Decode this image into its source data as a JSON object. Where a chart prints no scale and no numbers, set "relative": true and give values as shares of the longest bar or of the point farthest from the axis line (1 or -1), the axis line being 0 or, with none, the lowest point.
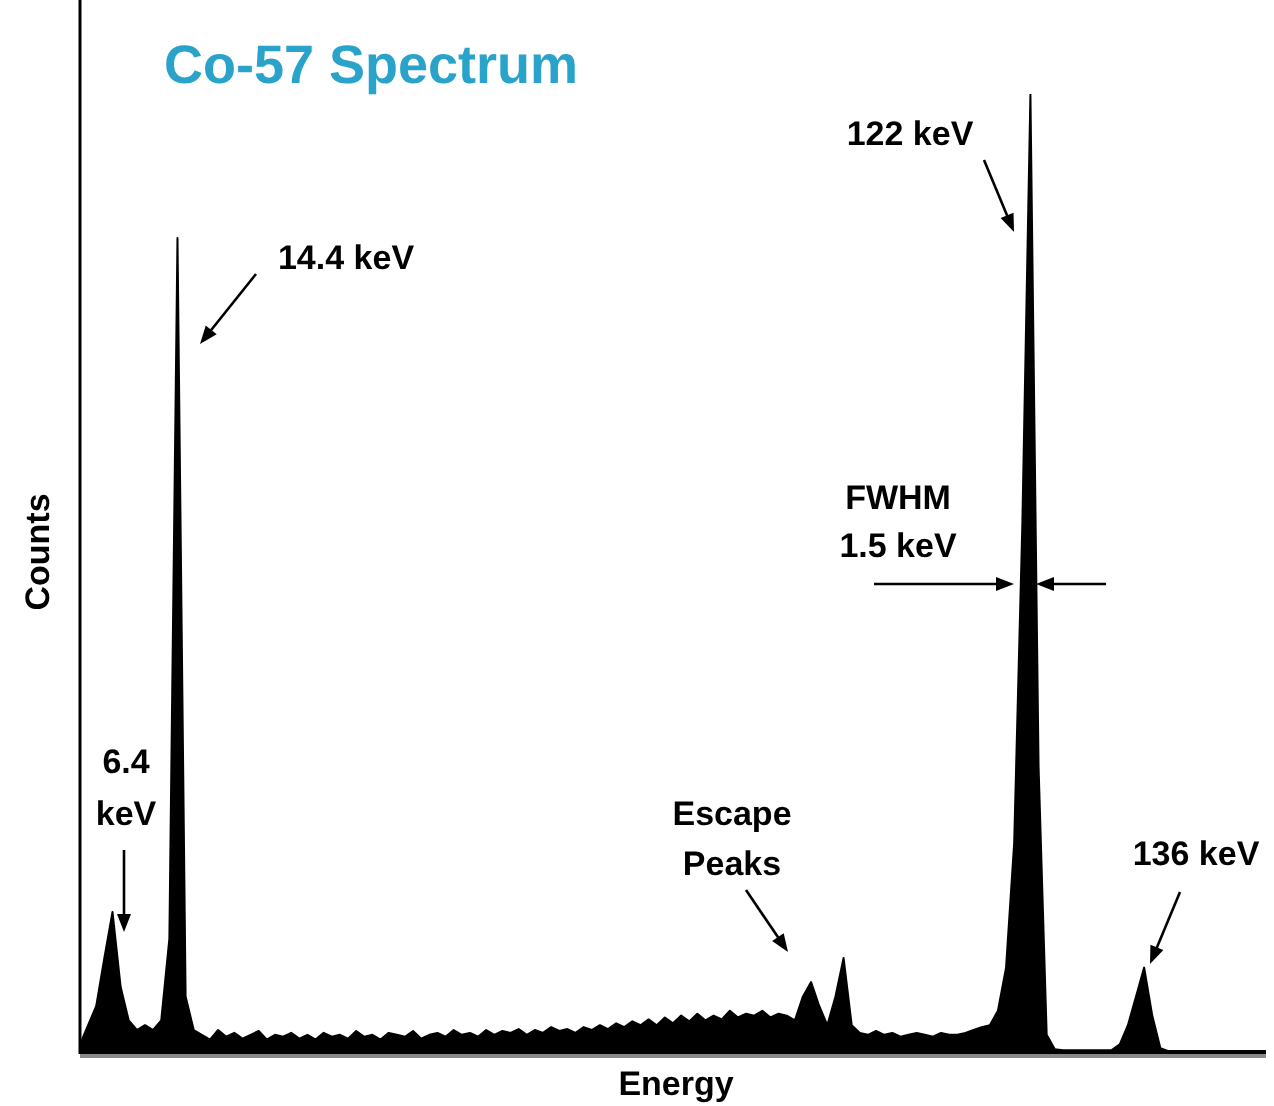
{
  "chart_data": {
    "type": "area",
    "title": "Co-57 Spectrum",
    "xlabel": "Energy",
    "ylabel": "Counts",
    "relative": true,
    "legend": false,
    "categories": [
      null,
      null,
      null,
      null,
      null,
      null,
      null,
      null,
      null,
      null,
      null,
      null,
      null,
      null,
      null,
      null,
      null,
      null,
      null,
      null,
      null,
      null,
      null,
      null,
      null,
      null,
      null,
      null,
      null,
      null,
      null,
      null,
      null,
      null,
      null,
      null,
      null,
      null,
      null,
      null,
      null,
      null,
      null,
      null,
      null,
      null,
      null,
      null,
      null,
      null,
      null,
      null,
      null,
      null,
      null,
      null,
      null,
      null,
      null,
      null,
      null,
      null,
      null,
      null,
      null,
      null,
      null,
      null,
      null,
      null,
      null,
      null,
      null,
      null,
      null,
      null,
      null,
      null,
      null,
      null,
      null,
      null,
      null,
      null,
      null,
      null,
      null,
      null,
      null,
      null,
      null,
      null,
      null,
      null,
      null,
      null,
      null,
      null,
      null,
      null,
      null,
      null,
      null,
      null,
      null,
      null,
      null,
      null,
      null,
      null,
      null,
      null,
      null,
      null,
      null,
      null,
      null,
      null,
      null,
      null,
      null,
      null,
      null,
      null,
      null,
      null,
      null,
      null,
      null,
      null,
      null,
      null,
      null,
      null,
      null,
      null,
      null,
      null,
      null,
      null,
      null,
      null,
      null,
      null,
      null,
      null,
      null
    ],
    "series": [
      {
        "color": "#000000",
        "values": [
          0.01,
          0.03,
          0.05,
          0.1,
          0.148,
          0.07,
          0.035,
          0.025,
          0.03,
          0.025,
          0.035,
          0.12,
          0.85,
          0.06,
          0.025,
          0.02,
          0.015,
          0.025,
          0.018,
          0.022,
          0.016,
          0.02,
          0.024,
          0.015,
          0.02,
          0.018,
          0.022,
          0.016,
          0.02,
          0.015,
          0.022,
          0.018,
          0.02,
          0.016,
          0.024,
          0.018,
          0.02,
          0.015,
          0.022,
          0.02,
          0.018,
          0.024,
          0.016,
          0.02,
          0.022,
          0.018,
          0.025,
          0.02,
          0.022,
          0.018,
          0.025,
          0.02,
          0.024,
          0.022,
          0.026,
          0.02,
          0.025,
          0.022,
          0.028,
          0.024,
          0.026,
          0.022,
          0.028,
          0.025,
          0.03,
          0.026,
          0.032,
          0.028,
          0.034,
          0.03,
          0.036,
          0.03,
          0.038,
          0.032,
          0.04,
          0.034,
          0.042,
          0.035,
          0.04,
          0.036,
          0.045,
          0.038,
          0.042,
          0.04,
          0.045,
          0.038,
          0.042,
          0.04,
          0.035,
          0.06,
          0.075,
          0.05,
          0.03,
          0.06,
          0.1,
          0.03,
          0.022,
          0.02,
          0.024,
          0.02,
          0.022,
          0.018,
          0.02,
          0.022,
          0.02,
          0.018,
          0.022,
          0.02,
          0.02,
          0.022,
          0.025,
          0.028,
          0.03,
          0.045,
          0.09,
          0.22,
          0.55,
          1,
          0.3,
          0.02,
          0.005,
          0.004,
          0.004,
          0.004,
          0.004,
          0.004,
          0.004,
          0.004,
          0.01,
          0.03,
          0.06,
          0.09,
          0.04,
          0.006,
          0.003,
          0.003,
          0.003,
          0.003,
          0.003,
          0.003,
          0.003,
          0.003,
          0.003,
          0.003,
          0.003,
          0.003,
          0.003
        ]
      }
    ],
    "annotations": [
      "14.4 keV",
      "6.4 keV",
      "122 keV",
      "FWHM 1.5 keV",
      "Escape Peaks",
      "136 keV"
    ]
  }
}
